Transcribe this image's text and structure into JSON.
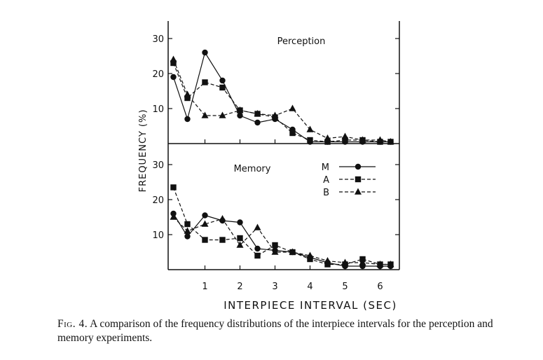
{
  "chart_data": [
    {
      "type": "line",
      "panel": "top",
      "title": "Perception",
      "x": [
        0.1,
        0.5,
        1.0,
        1.5,
        2.0,
        2.5,
        3.0,
        3.5,
        4.0,
        4.5,
        5.0,
        5.5,
        6.0,
        6.3
      ],
      "series": [
        {
          "name": "M",
          "style": "solid",
          "marker": "circle",
          "values": [
            19,
            7,
            26,
            18,
            8,
            6,
            7,
            4,
            0.5,
            0.5,
            0.5,
            0.5,
            0.5,
            0.5
          ]
        },
        {
          "name": "A",
          "style": "dashed",
          "marker": "square",
          "values": [
            23,
            13,
            17.5,
            16,
            9.5,
            8.5,
            7.5,
            3,
            1,
            0.5,
            1,
            1,
            0.5,
            0.5
          ]
        },
        {
          "name": "B",
          "style": "dashed",
          "marker": "triangle",
          "values": [
            24,
            14,
            8,
            8,
            9.5,
            8.5,
            8,
            10,
            4,
            1.5,
            2,
            1,
            1,
            0.5
          ]
        }
      ],
      "ylim": [
        0,
        35
      ],
      "yticks": [
        10,
        20,
        30
      ]
    },
    {
      "type": "line",
      "panel": "bottom",
      "title": "Memory",
      "x": [
        0.1,
        0.5,
        1.0,
        1.5,
        2.0,
        2.5,
        3.0,
        3.5,
        4.0,
        4.5,
        5.0,
        5.5,
        6.0,
        6.3
      ],
      "series": [
        {
          "name": "M",
          "style": "solid",
          "marker": "circle",
          "values": [
            16,
            9.5,
            15.5,
            14,
            13.5,
            6,
            5.5,
            5,
            3.5,
            2,
            1,
            1,
            1,
            1
          ]
        },
        {
          "name": "A",
          "style": "dashed",
          "marker": "square",
          "values": [
            23.5,
            13,
            8.5,
            8.5,
            9,
            4,
            7,
            5,
            3,
            1.5,
            1.5,
            3,
            1.5,
            1.5
          ]
        },
        {
          "name": "B",
          "style": "dashed",
          "marker": "triangle",
          "values": [
            15,
            11,
            13,
            14.5,
            7,
            12,
            5,
            5,
            4,
            2.5,
            2,
            2,
            1.5,
            1.5
          ]
        }
      ],
      "ylim": [
        0,
        35
      ],
      "yticks": [
        10,
        20,
        30
      ]
    }
  ],
  "axes": {
    "xlabel": "INTERPIECE INTERVAL (SEC)",
    "ylabel": "FREQUENCY (%)",
    "xticks": [
      1,
      2,
      3,
      4,
      5,
      6
    ],
    "ytick_labels": [
      "10",
      "20",
      "30"
    ],
    "xlim": [
      -0.05,
      6.55
    ]
  },
  "legend": {
    "placement": "upper-right of memory panel",
    "entries": [
      {
        "label": "M",
        "marker": "circle",
        "style": "solid"
      },
      {
        "label": "A",
        "marker": "square",
        "style": "dashed"
      },
      {
        "label": "B",
        "marker": "triangle",
        "style": "dashed"
      }
    ]
  },
  "caption": {
    "lead": "Fig. 4.",
    "text": "A comparison of the frequency distributions of the interpiece intervals for the perception and memory experiments."
  },
  "colors": {
    "ink": "#111111",
    "paper": "#ffffff"
  }
}
